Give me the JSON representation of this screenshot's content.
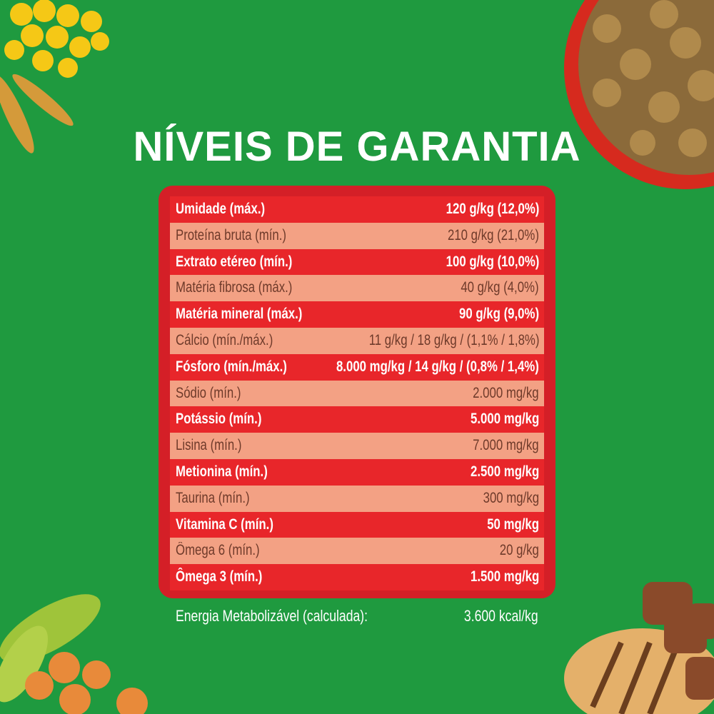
{
  "header": {
    "title": "NÍVEIS DE GARANTIA"
  },
  "table": {
    "rows": [
      [
        "Umidade (máx.)",
        "120 g/kg (12,0%)"
      ],
      [
        "Proteína bruta (mín.)",
        "210 g/kg (21,0%)"
      ],
      [
        "Extrato etéreo (mín.)",
        "100 g/kg (10,0%)"
      ],
      [
        "Matéria fibrosa (máx.)",
        "40 g/kg (4,0%)"
      ],
      [
        "Matéria mineral (máx.)",
        "90 g/kg (9,0%)"
      ],
      [
        "Cálcio (mín./máx.)",
        "11 g/kg / 18 g/kg / (1,1% / 1,8%)"
      ],
      [
        "Fósforo (mín./máx.)",
        "8.000 mg/kg / 14 g/kg / (0,8% / 1,4%)"
      ],
      [
        "Sódio (mín.)",
        "2.000 mg/kg"
      ],
      [
        "Potássio (mín.)",
        "5.000 mg/kg"
      ],
      [
        "Lisina (mín.)",
        "7.000 mg/kg"
      ],
      [
        "Metionina (mín.)",
        "2.500 mg/kg"
      ],
      [
        "Taurina (mín.)",
        "300 mg/kg"
      ],
      [
        "Vitamina C (mín.)",
        "50 mg/kg"
      ],
      [
        "Ômega 6 (mín.)",
        "20 g/kg"
      ],
      [
        "Ômega 3 (mín.)",
        "1.500 mg/kg"
      ]
    ]
  },
  "footer": {
    "label": "Energia Metabolizável (calculada):",
    "value": "3.600 kcal/kg"
  }
}
